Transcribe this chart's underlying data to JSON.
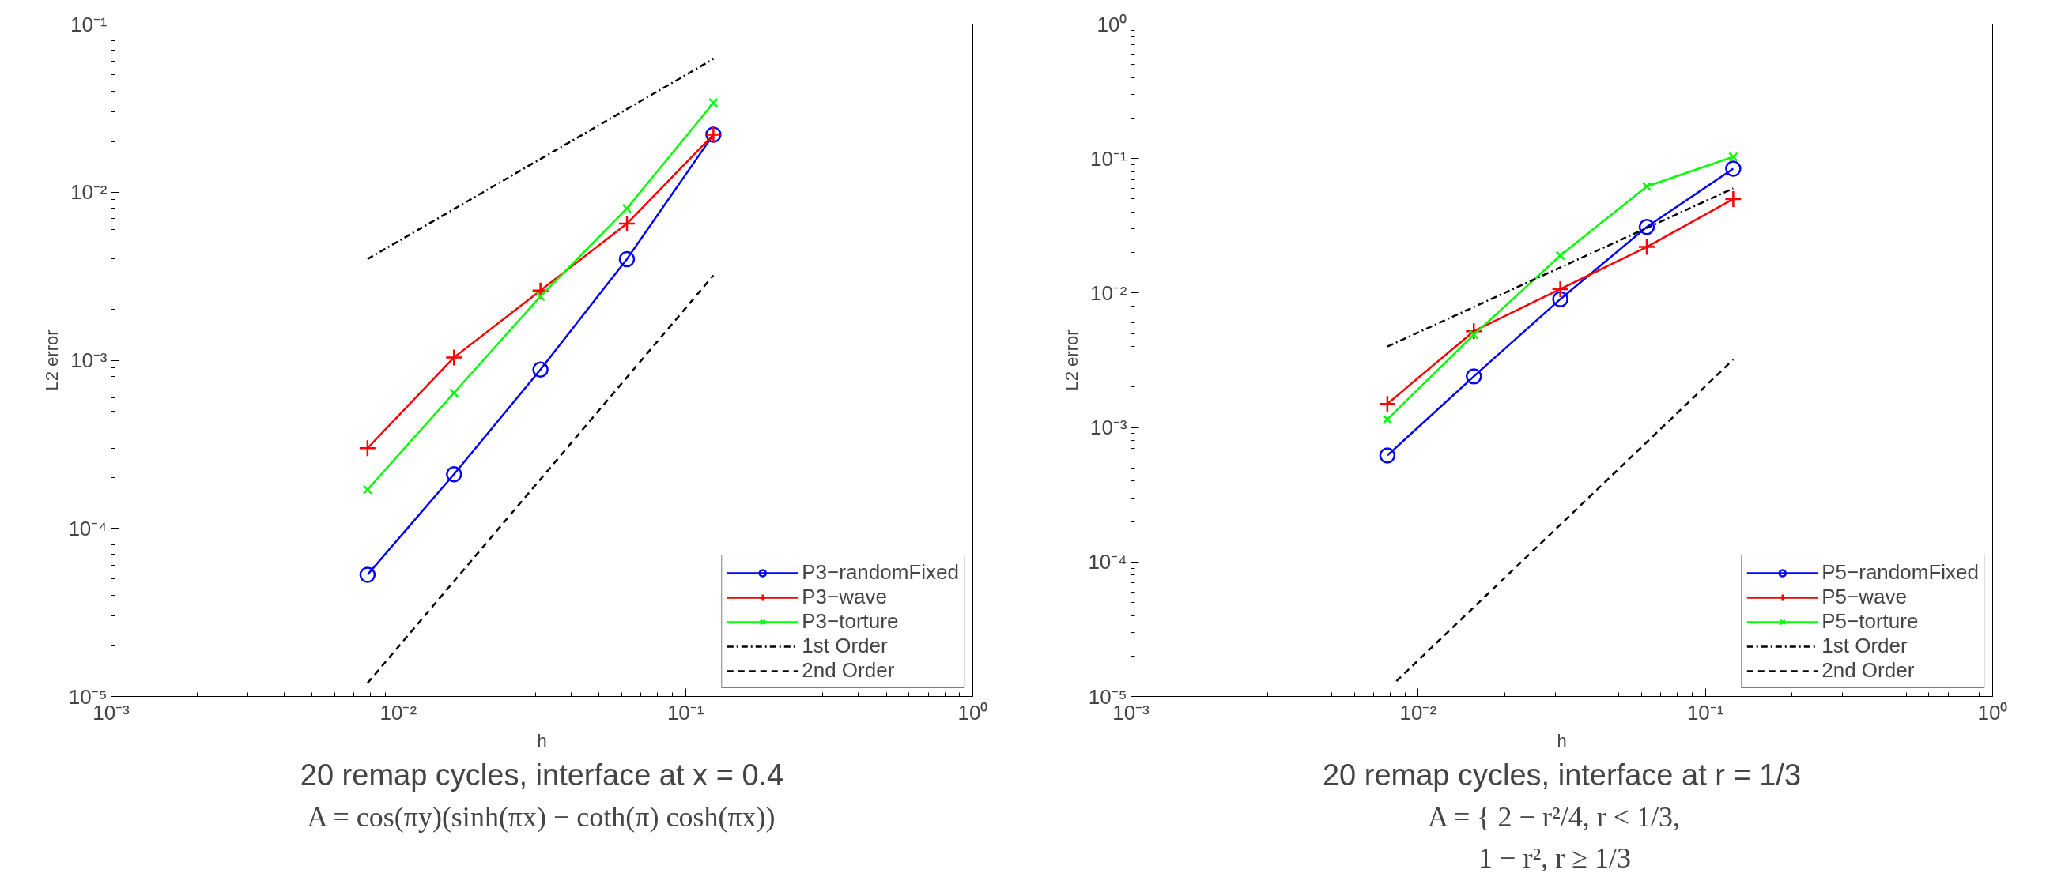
{
  "chart_data": [
    {
      "type": "line",
      "title": "20 remap cycles, interface at x = 0.4",
      "xlabel": "h",
      "ylabel": "L2 error",
      "annotations": [
        "A = cos(πy)(sinh(πx) − coth(π) cosh(πx))"
      ],
      "log": "xy",
      "grid": false,
      "legend": "bottom right",
      "xlim": [
        0.001,
        1
      ],
      "ylim": [
        1e-05,
        0.1
      ],
      "xticks": [
        {
          "value": 0.001,
          "label": "10⁻³"
        },
        {
          "value": 0.01,
          "label": "10⁻²"
        },
        {
          "value": 0.1,
          "label": "10⁻¹"
        },
        {
          "value": 1,
          "label": "10⁰"
        }
      ],
      "yticks": [
        {
          "value": 1e-05,
          "label": "10⁻⁵"
        },
        {
          "value": 0.0001,
          "label": "10⁻⁴"
        },
        {
          "value": 0.001,
          "label": "10⁻³"
        },
        {
          "value": 0.01,
          "label": "10⁻²"
        },
        {
          "value": 0.1,
          "label": "10⁻¹"
        }
      ],
      "x": [
        0.0078125,
        0.015625,
        0.03125,
        0.0625,
        0.125
      ],
      "series": [
        {
          "name": "P3−randomFixed",
          "color": "#0000ff",
          "marker": "circle",
          "line_style": "solid",
          "values": [
            5.3e-05,
            0.00021,
            0.00088,
            0.004,
            0.022
          ]
        },
        {
          "name": "P3−wave",
          "color": "#ff0000",
          "marker": "cross",
          "line_style": "solid",
          "values": [
            0.0003,
            0.00104,
            0.0026,
            0.0065,
            0.022
          ]
        },
        {
          "name": "P3−torture",
          "color": "#00ff00",
          "marker": "x",
          "line_style": "solid",
          "values": [
            0.00017,
            0.00064,
            0.0024,
            0.008,
            0.034
          ]
        },
        {
          "name": "1st Order",
          "color": "#000000",
          "marker": "none",
          "line_style": "dashdot",
          "x": [
            0.0078125,
            0.125
          ],
          "values": [
            0.004,
            0.062
          ]
        },
        {
          "name": "2nd Order",
          "color": "#000000",
          "marker": "none",
          "line_style": "dashed",
          "x": [
            0.0078125,
            0.125
          ],
          "values": [
            1.2e-05,
            0.0032
          ]
        }
      ]
    },
    {
      "type": "line",
      "title": "20 remap cycles, interface at r = 1/3",
      "xlabel": "h",
      "ylabel": "L2 error",
      "annotations": [
        "A = { 2 − r²/4,   r < 1/3,",
        "1 − r²,   r ≥ 1/3"
      ],
      "log": "xy",
      "grid": false,
      "legend": "bottom right",
      "xlim": [
        0.001,
        1
      ],
      "ylim": [
        1e-05,
        1
      ],
      "xticks": [
        {
          "value": 0.001,
          "label": "10⁻³"
        },
        {
          "value": 0.01,
          "label": "10⁻²"
        },
        {
          "value": 0.1,
          "label": "10⁻¹"
        },
        {
          "value": 1,
          "label": "10⁰"
        }
      ],
      "yticks": [
        {
          "value": 1e-05,
          "label": "10⁻⁵"
        },
        {
          "value": 0.0001,
          "label": "10⁻⁴"
        },
        {
          "value": 0.001,
          "label": "10⁻³"
        },
        {
          "value": 0.01,
          "label": "10⁻²"
        },
        {
          "value": 0.1,
          "label": "10⁻¹"
        },
        {
          "value": 1,
          "label": "10⁰"
        }
      ],
      "x": [
        0.0078125,
        0.015625,
        0.03125,
        0.0625,
        0.125
      ],
      "series": [
        {
          "name": "P5−randomFixed",
          "color": "#0000ff",
          "marker": "circle",
          "line_style": "solid",
          "values": [
            0.00062,
            0.0024,
            0.009,
            0.031,
            0.084
          ]
        },
        {
          "name": "P5−wave",
          "color": "#ff0000",
          "marker": "cross",
          "line_style": "solid",
          "values": [
            0.0015,
            0.0052,
            0.0107,
            0.022,
            0.05
          ]
        },
        {
          "name": "P5−torture",
          "color": "#00ff00",
          "marker": "x",
          "line_style": "solid",
          "values": [
            0.00115,
            0.0049,
            0.019,
            0.062,
            0.103
          ]
        },
        {
          "name": "1st Order",
          "color": "#000000",
          "marker": "none",
          "line_style": "dashdot",
          "x": [
            0.0078125,
            0.125
          ],
          "values": [
            0.004,
            0.06
          ]
        },
        {
          "name": "2nd Order",
          "color": "#000000",
          "marker": "none",
          "line_style": "dashed",
          "x": [
            0.0084,
            0.125
          ],
          "values": [
            1.3e-05,
            0.0032
          ]
        }
      ]
    }
  ]
}
